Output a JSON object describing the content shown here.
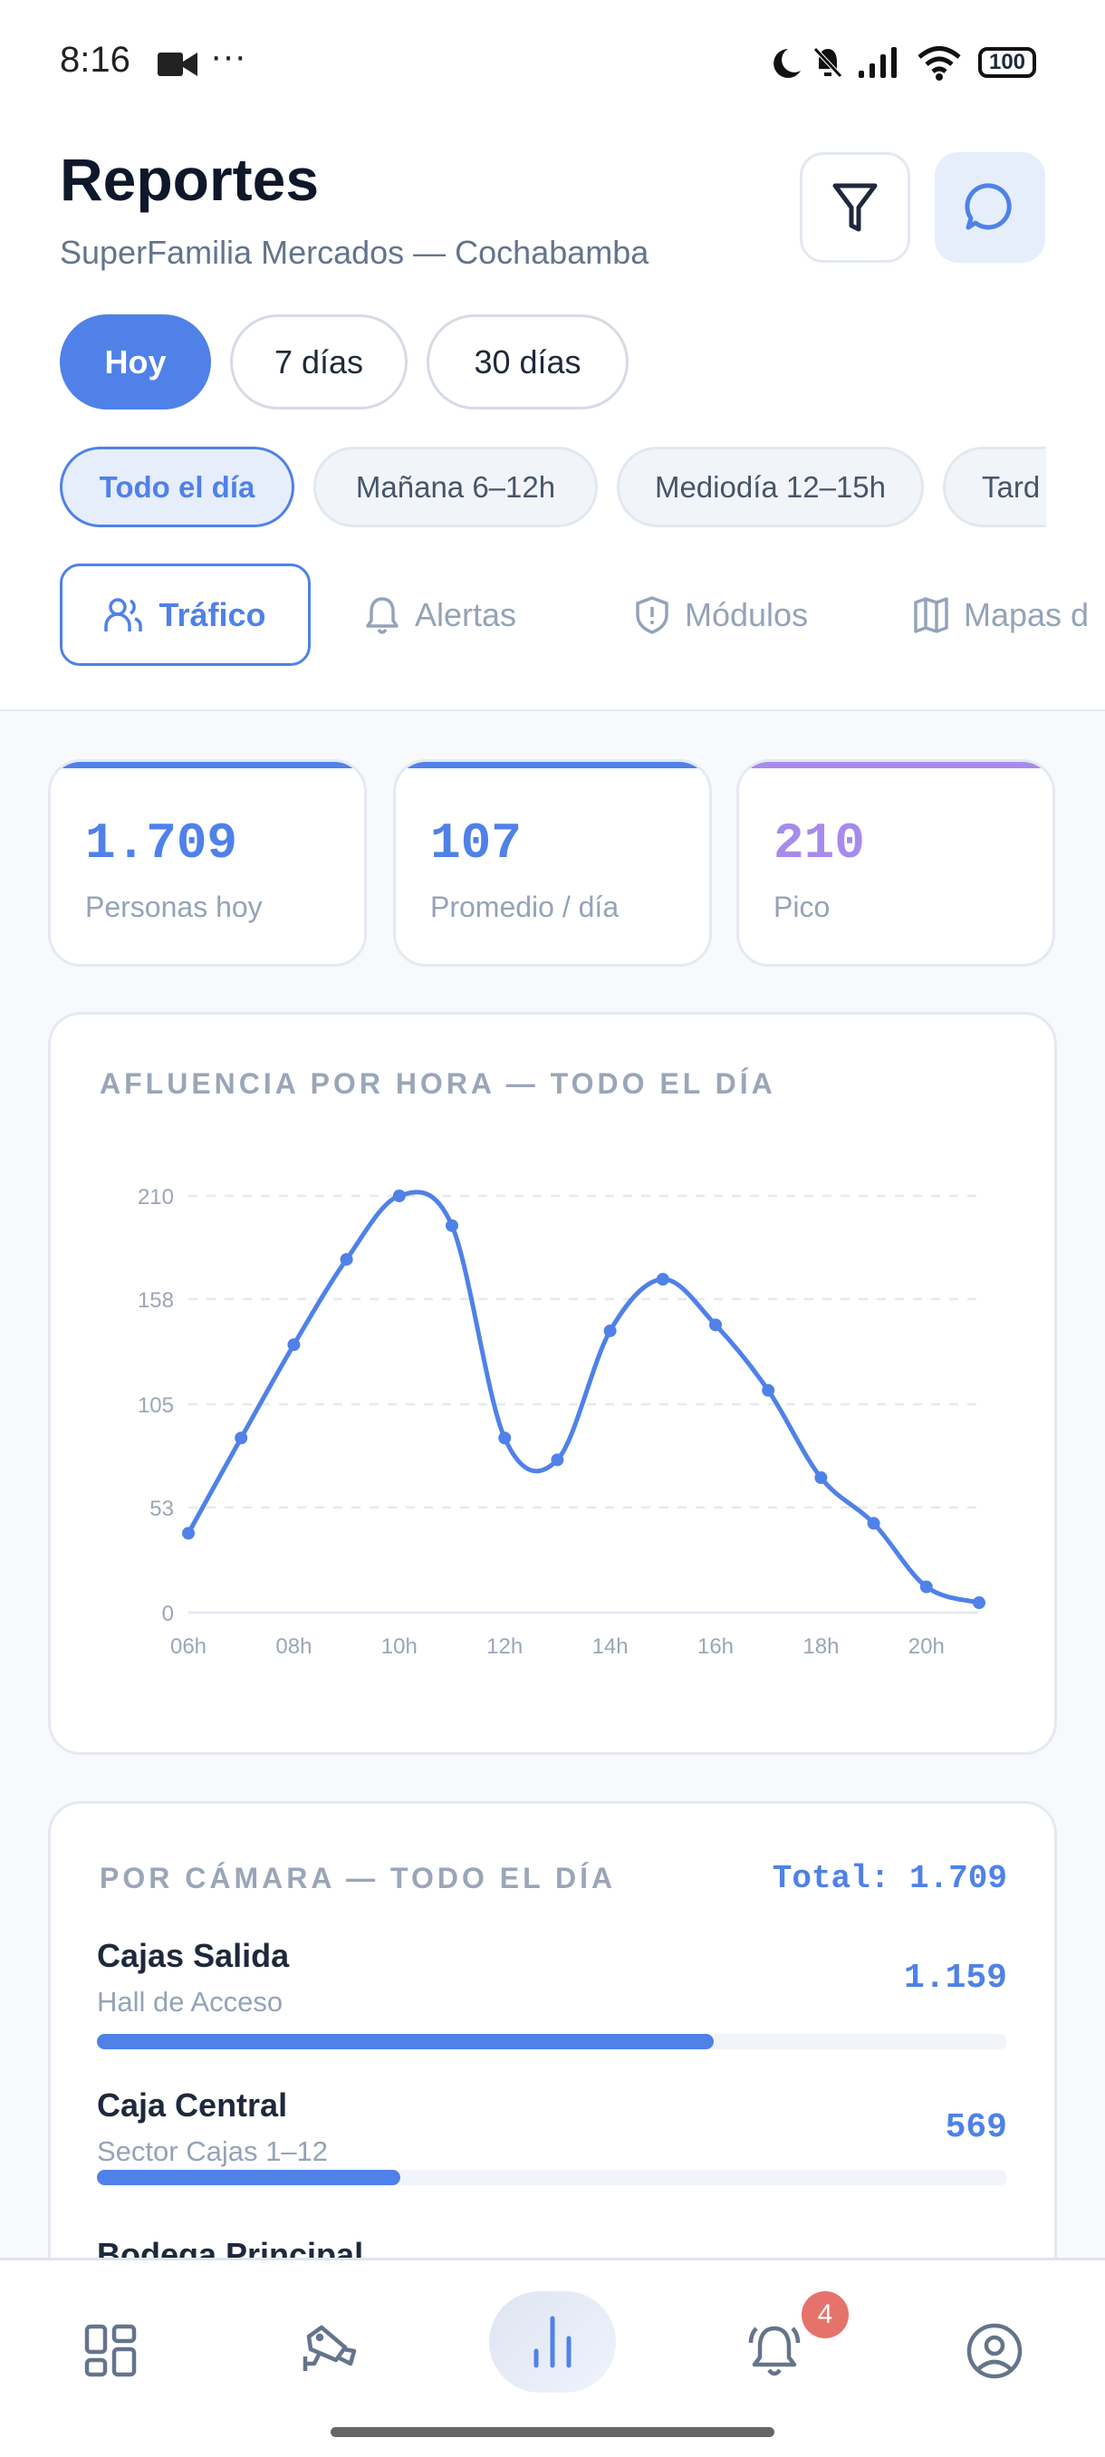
{
  "status_bar": {
    "time": "8:16",
    "battery": "100",
    "icons": [
      "video-camera-icon",
      "more-icon",
      "moon-icon",
      "bell-off-icon",
      "signal-icon",
      "wifi-icon",
      "battery-icon"
    ]
  },
  "header": {
    "title": "Reportes",
    "subtitle": "SuperFamilia Mercados — Cochabamba",
    "buttons": [
      "filter-icon",
      "chat-icon"
    ]
  },
  "periods": [
    {
      "label": "Hoy",
      "active": true
    },
    {
      "label": "7 días"
    },
    {
      "label": "30 días"
    }
  ],
  "time_ranges": [
    {
      "label": "Todo el día",
      "active": true
    },
    {
      "label": "Mañana 6–12h"
    },
    {
      "label": "Mediodía 12–15h"
    },
    {
      "label": "Tard"
    }
  ],
  "tabs": [
    {
      "label": "Tráfico",
      "icon": "users-icon",
      "active": true
    },
    {
      "label": "Alertas",
      "icon": "bell-icon"
    },
    {
      "label": "Módulos",
      "icon": "shield-icon"
    },
    {
      "label": "Mapas d",
      "icon": "map-icon"
    }
  ],
  "stats": [
    {
      "value": "1.709",
      "label": "Personas hoy",
      "color": "#4f81e8"
    },
    {
      "value": "107",
      "label": "Promedio / día",
      "color": "#4f81e8"
    },
    {
      "value": "210",
      "label": "Pico",
      "color": "#a78bea"
    }
  ],
  "chart_data": {
    "type": "line",
    "title": "AFLUENCIA POR HORA — TODO EL DÍA",
    "x": [
      6,
      7,
      8,
      9,
      10,
      11,
      12,
      13,
      14,
      15,
      16,
      17,
      18,
      19,
      20,
      21
    ],
    "xticks": [
      "06h",
      "08h",
      "10h",
      "12h",
      "14h",
      "16h",
      "18h",
      "20h"
    ],
    "yticks": [
      "0",
      "53",
      "105",
      "158",
      "210"
    ],
    "ylim": [
      0,
      210
    ],
    "values": [
      40,
      88,
      135,
      178,
      210,
      195,
      88,
      77,
      142,
      168,
      145,
      112,
      68,
      45,
      13,
      5
    ],
    "color": "#4f81e8",
    "grid": true
  },
  "cameras": {
    "title": "POR CÁMARA — TODO EL DÍA",
    "total": "Total: 1.709",
    "items": [
      {
        "name": "Cajas Salida",
        "location": "Hall de Acceso",
        "value": "1.159",
        "share": 0.678
      },
      {
        "name": "Caja Central",
        "location": "Sector Cajas 1–12",
        "value": "569",
        "share": 0.333
      },
      {
        "name": "Bodega Principal"
      }
    ]
  },
  "bottom_nav": {
    "items": [
      "dashboard-icon",
      "camera-icon",
      "reports-icon",
      "alerts-icon",
      "profile-icon"
    ],
    "active": "reports-icon",
    "alert_badge": "4",
    "badge_color": "#e5736b"
  }
}
